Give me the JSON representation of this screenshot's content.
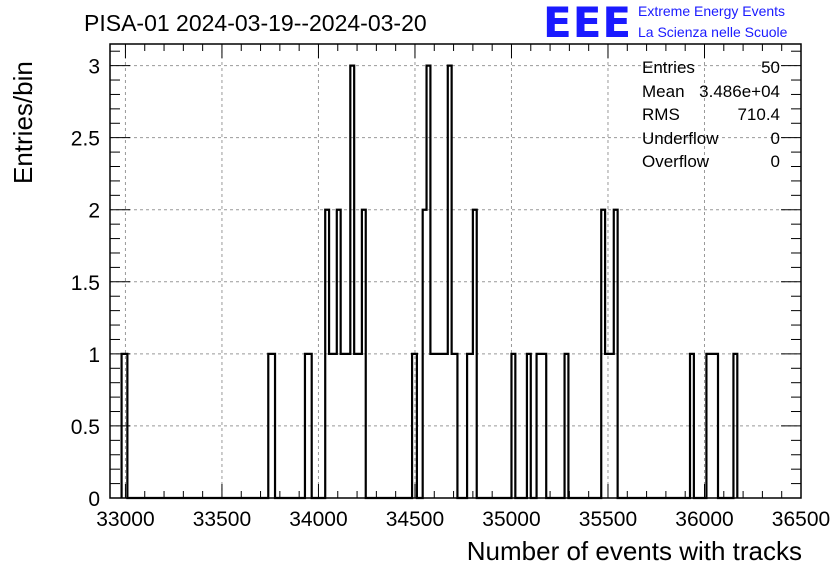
{
  "header": {
    "title": "PISA-01 2024-03-19--2024-03-20",
    "logo_text": "EEE",
    "brand_line1": "Extreme Energy Events",
    "brand_line2": "La Scienza nelle Scuole"
  },
  "stats": {
    "entries_label": "Entries",
    "entries_value": "50",
    "mean_label": "Mean",
    "mean_value": "3.486e+04",
    "rms_label": "RMS",
    "rms_value": "710.4",
    "underflow_label": "Underflow",
    "underflow_value": "0",
    "overflow_label": "Overflow",
    "overflow_value": "0"
  },
  "colors": {
    "line": "#000000",
    "grid": "#999999",
    "logo": "#1a1aff"
  },
  "chart_data": {
    "type": "bar",
    "style": "step-histogram",
    "title": "PISA-01 2024-03-19--2024-03-20",
    "xlabel": "Number of events with tracks",
    "ylabel": "Entries/bin",
    "xlim": [
      32920,
      36500
    ],
    "ylim": [
      0,
      3.15
    ],
    "xticks": [
      33000,
      33500,
      34000,
      34500,
      35000,
      35500,
      36000,
      36500
    ],
    "xtick_labels": [
      "33000",
      "33500",
      "34000",
      "34500",
      "35000",
      "35500",
      "36000",
      "36500"
    ],
    "yticks": [
      0,
      0.5,
      1,
      1.5,
      2,
      2.5,
      3
    ],
    "ytick_labels": [
      "0",
      "0.5",
      "1",
      "1.5",
      "2",
      "2.5",
      "3"
    ],
    "grid": true,
    "bins": [
      {
        "x0": 32980,
        "x1": 33010,
        "y": 1
      },
      {
        "x0": 33740,
        "x1": 33775,
        "y": 1
      },
      {
        "x0": 33930,
        "x1": 33965,
        "y": 1
      },
      {
        "x0": 34035,
        "x1": 34055,
        "y": 2
      },
      {
        "x0": 34055,
        "x1": 34095,
        "y": 1
      },
      {
        "x0": 34095,
        "x1": 34115,
        "y": 2
      },
      {
        "x0": 34115,
        "x1": 34165,
        "y": 1
      },
      {
        "x0": 34165,
        "x1": 34185,
        "y": 3
      },
      {
        "x0": 34185,
        "x1": 34225,
        "y": 1
      },
      {
        "x0": 34225,
        "x1": 34245,
        "y": 2
      },
      {
        "x0": 34485,
        "x1": 34510,
        "y": 1
      },
      {
        "x0": 34540,
        "x1": 34560,
        "y": 2
      },
      {
        "x0": 34560,
        "x1": 34580,
        "y": 3
      },
      {
        "x0": 34580,
        "x1": 34670,
        "y": 1
      },
      {
        "x0": 34670,
        "x1": 34690,
        "y": 3
      },
      {
        "x0": 34690,
        "x1": 34720,
        "y": 1
      },
      {
        "x0": 34770,
        "x1": 34800,
        "y": 1
      },
      {
        "x0": 34800,
        "x1": 34820,
        "y": 2
      },
      {
        "x0": 35000,
        "x1": 35020,
        "y": 1
      },
      {
        "x0": 35080,
        "x1": 35100,
        "y": 1
      },
      {
        "x0": 35130,
        "x1": 35180,
        "y": 1
      },
      {
        "x0": 35275,
        "x1": 35295,
        "y": 1
      },
      {
        "x0": 35465,
        "x1": 35485,
        "y": 2
      },
      {
        "x0": 35485,
        "x1": 35530,
        "y": 1
      },
      {
        "x0": 35530,
        "x1": 35550,
        "y": 2
      },
      {
        "x0": 35925,
        "x1": 35945,
        "y": 1
      },
      {
        "x0": 36010,
        "x1": 36070,
        "y": 1
      },
      {
        "x0": 36150,
        "x1": 36170,
        "y": 1
      }
    ]
  }
}
